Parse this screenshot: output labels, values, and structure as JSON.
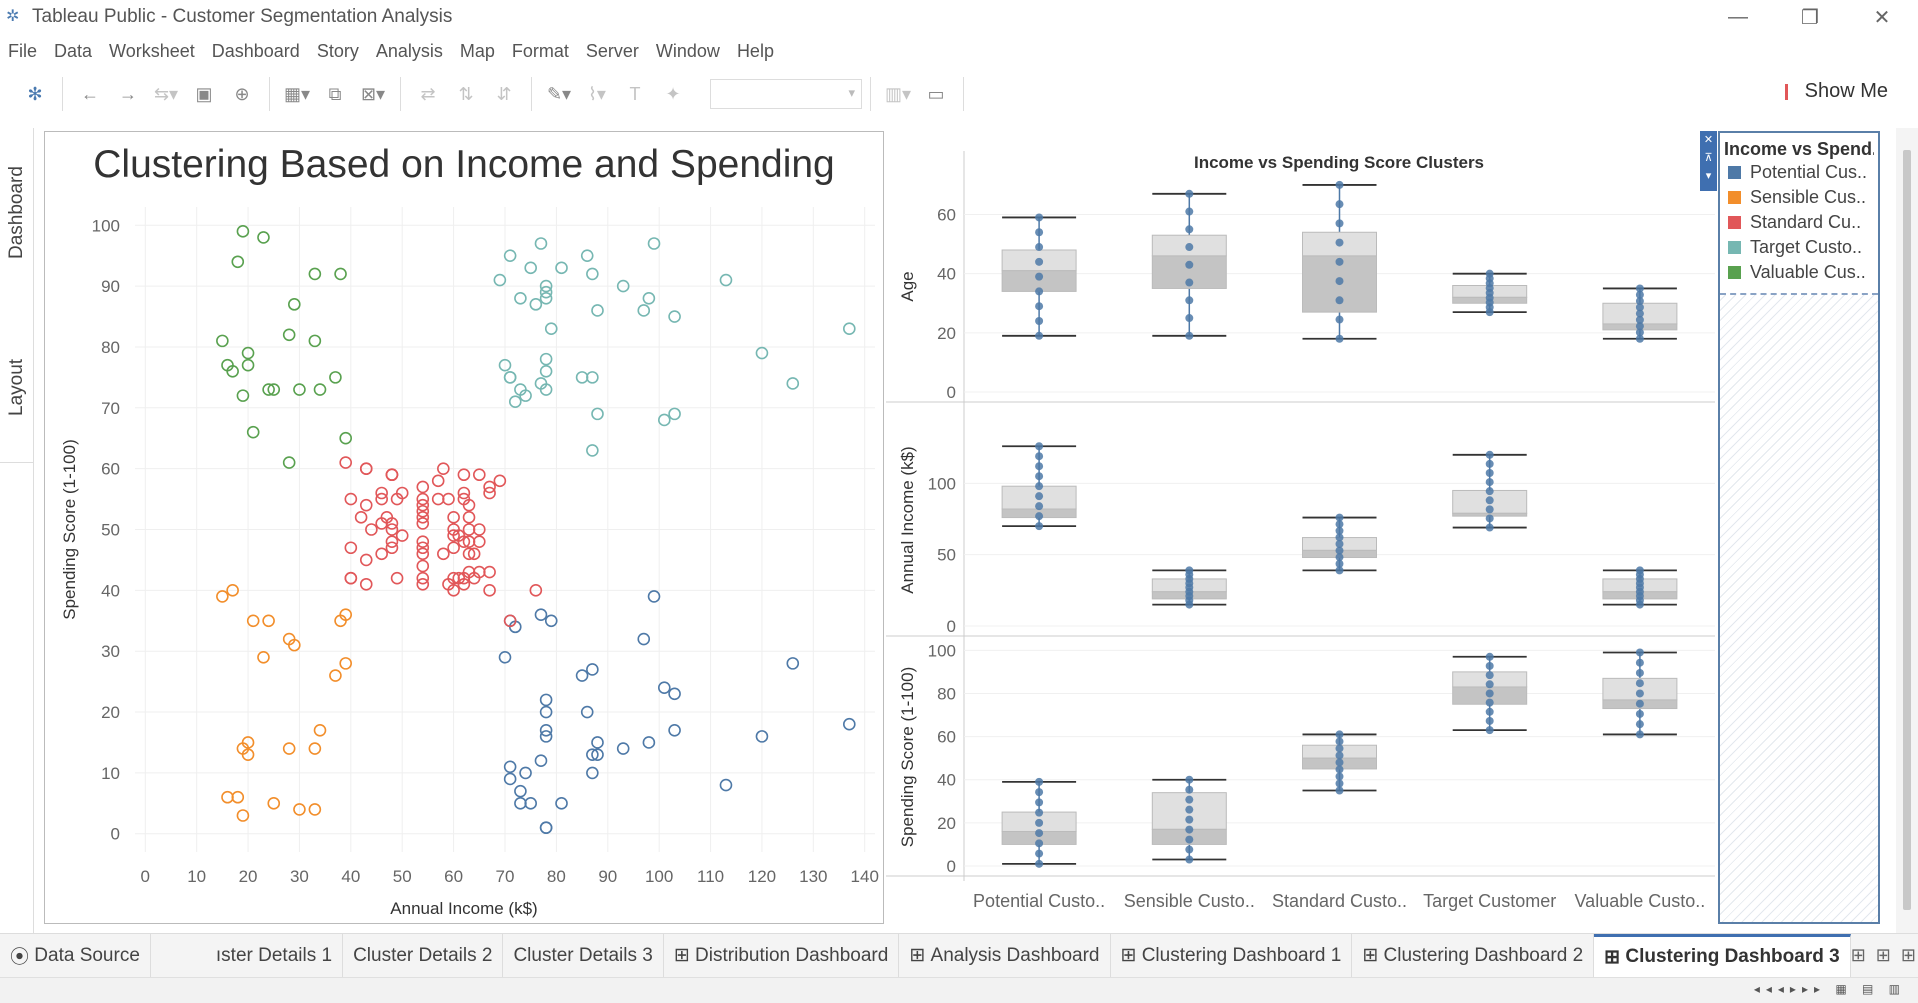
{
  "window": {
    "title": "Tableau Public - Customer Segmentation Analysis",
    "minimize": "—",
    "restore": "❐",
    "close": "✕"
  },
  "menu": [
    "File",
    "Data",
    "Worksheet",
    "Dashboard",
    "Story",
    "Analysis",
    "Map",
    "Format",
    "Server",
    "Window",
    "Help"
  ],
  "toolbar": {
    "show_me": "Show Me"
  },
  "side_tabs": {
    "dashboard": "Dashboard",
    "layout": "Layout",
    "collapse": "›"
  },
  "scatter": {
    "title": "Clustering Based on Income and Spending",
    "xlabel": "Annual Income (k$)",
    "ylabel": "Spending Score (1-100)",
    "xticks": [
      "0",
      "10",
      "20",
      "30",
      "40",
      "50",
      "60",
      "70",
      "80",
      "90",
      "100",
      "110",
      "120",
      "130",
      "140"
    ],
    "yticks": [
      "0",
      "10",
      "20",
      "30",
      "40",
      "50",
      "60",
      "70",
      "80",
      "90",
      "100"
    ]
  },
  "boxplots": {
    "title": "Income vs Spending Score Clusters",
    "rows": [
      {
        "label": "Age",
        "ticks": [
          "0",
          "20",
          "40",
          "60"
        ]
      },
      {
        "label": "Annual Income (k$)",
        "ticks": [
          "0",
          "50",
          "100"
        ]
      },
      {
        "label": "Spending Score (1-100)",
        "ticks": [
          "0",
          "20",
          "40",
          "60",
          "80",
          "100"
        ]
      }
    ],
    "categories": [
      "Potential Custo..",
      "Sensible Custo..",
      "Standard Custo..",
      "Target Customer",
      "Valuable Custo.."
    ]
  },
  "legend": {
    "title": "Income vs Spend..",
    "items": [
      {
        "label": "Potential Cus..",
        "color": "#4e79a7"
      },
      {
        "label": "Sensible Cus..",
        "color": "#f28e2b"
      },
      {
        "label": "Standard Cu..",
        "color": "#e15759"
      },
      {
        "label": "Target Custo..",
        "color": "#76b7b2"
      },
      {
        "label": "Valuable Cus..",
        "color": "#59a14f"
      }
    ]
  },
  "tabs": [
    "Data Source",
    "ıster Details 1",
    "Cluster Details 2",
    "Cluster Details 3",
    "Distribution Dashboard",
    "Analysis Dashboard",
    "Clustering Dashboard 1",
    "Clustering Dashboard 2",
    "Clustering Dashboard 3"
  ],
  "active_tab": "Clustering Dashboard 3",
  "chart_data": [
    {
      "type": "scatter",
      "title": "Clustering Based on Income and Spending",
      "xlabel": "Annual Income (k$)",
      "ylabel": "Spending Score (1-100)",
      "xlim": [
        -2,
        142
      ],
      "ylim": [
        -3,
        103
      ],
      "grid": true,
      "series": [
        {
          "name": "Potential Customer",
          "color": "#4e79a7",
          "points": [
            [
              70,
              29
            ],
            [
              71,
              35
            ],
            [
              71,
              11
            ],
            [
              71,
              9
            ],
            [
              72,
              34
            ],
            [
              73,
              5
            ],
            [
              73,
              7
            ],
            [
              74,
              10
            ],
            [
              75,
              5
            ],
            [
              77,
              12
            ],
            [
              77,
              36
            ],
            [
              78,
              22
            ],
            [
              78,
              17
            ],
            [
              78,
              20
            ],
            [
              78,
              16
            ],
            [
              78,
              1
            ],
            [
              78,
              1
            ],
            [
              79,
              35
            ],
            [
              81,
              5
            ],
            [
              85,
              26
            ],
            [
              86,
              20
            ],
            [
              87,
              27
            ],
            [
              87,
              13
            ],
            [
              87,
              10
            ],
            [
              88,
              13
            ],
            [
              88,
              15
            ],
            [
              93,
              14
            ],
            [
              97,
              32
            ],
            [
              98,
              15
            ],
            [
              99,
              39
            ],
            [
              101,
              24
            ],
            [
              103,
              17
            ],
            [
              103,
              23
            ],
            [
              113,
              8
            ],
            [
              120,
              16
            ],
            [
              126,
              28
            ],
            [
              137,
              18
            ]
          ]
        },
        {
          "name": "Sensible Customer",
          "color": "#f28e2b",
          "points": [
            [
              15,
              39
            ],
            [
              16,
              6
            ],
            [
              17,
              40
            ],
            [
              18,
              6
            ],
            [
              19,
              3
            ],
            [
              19,
              14
            ],
            [
              20,
              15
            ],
            [
              20,
              13
            ],
            [
              21,
              35
            ],
            [
              23,
              29
            ],
            [
              24,
              35
            ],
            [
              25,
              5
            ],
            [
              28,
              14
            ],
            [
              28,
              32
            ],
            [
              29,
              31
            ],
            [
              30,
              4
            ],
            [
              33,
              4
            ],
            [
              33,
              14
            ],
            [
              34,
              17
            ],
            [
              37,
              26
            ],
            [
              38,
              35
            ],
            [
              39,
              36
            ],
            [
              39,
              28
            ]
          ]
        },
        {
          "name": "Standard Customer",
          "color": "#e15759",
          "points": [
            [
              39,
              61
            ],
            [
              40,
              55
            ],
            [
              40,
              47
            ],
            [
              40,
              42
            ],
            [
              40,
              42
            ],
            [
              42,
              52
            ],
            [
              43,
              60
            ],
            [
              43,
              54
            ],
            [
              43,
              60
            ],
            [
              43,
              45
            ],
            [
              43,
              41
            ],
            [
              44,
              50
            ],
            [
              46,
              51
            ],
            [
              46,
              46
            ],
            [
              46,
              56
            ],
            [
              46,
              55
            ],
            [
              47,
              52
            ],
            [
              48,
              59
            ],
            [
              48,
              51
            ],
            [
              48,
              59
            ],
            [
              48,
              50
            ],
            [
              48,
              48
            ],
            [
              48,
              59
            ],
            [
              48,
              47
            ],
            [
              49,
              55
            ],
            [
              49,
              42
            ],
            [
              50,
              49
            ],
            [
              50,
              56
            ],
            [
              54,
              47
            ],
            [
              54,
              54
            ],
            [
              54,
              53
            ],
            [
              54,
              48
            ],
            [
              54,
              52
            ],
            [
              54,
              42
            ],
            [
              54,
              51
            ],
            [
              54,
              55
            ],
            [
              54,
              41
            ],
            [
              54,
              44
            ],
            [
              54,
              57
            ],
            [
              54,
              46
            ],
            [
              57,
              58
            ],
            [
              57,
              55
            ],
            [
              58,
              60
            ],
            [
              58,
              46
            ],
            [
              59,
              55
            ],
            [
              59,
              41
            ],
            [
              60,
              49
            ],
            [
              60,
              40
            ],
            [
              60,
              42
            ],
            [
              60,
              52
            ],
            [
              60,
              47
            ],
            [
              60,
              50
            ],
            [
              61,
              42
            ],
            [
              61,
              49
            ],
            [
              62,
              41
            ],
            [
              62,
              48
            ],
            [
              62,
              59
            ],
            [
              62,
              55
            ],
            [
              62,
              56
            ],
            [
              62,
              42
            ],
            [
              63,
              50
            ],
            [
              63,
              46
            ],
            [
              63,
              43
            ],
            [
              63,
              48
            ],
            [
              63,
              52
            ],
            [
              63,
              54
            ],
            [
              64,
              42
            ],
            [
              64,
              46
            ],
            [
              65,
              48
            ],
            [
              65,
              50
            ],
            [
              65,
              43
            ],
            [
              65,
              59
            ],
            [
              67,
              43
            ],
            [
              67,
              57
            ],
            [
              67,
              56
            ],
            [
              67,
              40
            ],
            [
              69,
              58
            ],
            [
              71,
              35
            ],
            [
              76,
              40
            ]
          ]
        },
        {
          "name": "Target Customer",
          "color": "#76b7b2",
          "points": [
            [
              69,
              91
            ],
            [
              70,
              77
            ],
            [
              71,
              95
            ],
            [
              71,
              75
            ],
            [
              71,
              75
            ],
            [
              72,
              71
            ],
            [
              73,
              88
            ],
            [
              73,
              73
            ],
            [
              74,
              72
            ],
            [
              75,
              93
            ],
            [
              76,
              87
            ],
            [
              77,
              97
            ],
            [
              77,
              74
            ],
            [
              78,
              90
            ],
            [
              78,
              88
            ],
            [
              78,
              76
            ],
            [
              78,
              89
            ],
            [
              78,
              78
            ],
            [
              78,
              73
            ],
            [
              79,
              83
            ],
            [
              81,
              93
            ],
            [
              85,
              75
            ],
            [
              86,
              95
            ],
            [
              87,
              63
            ],
            [
              87,
              75
            ],
            [
              87,
              92
            ],
            [
              88,
              86
            ],
            [
              88,
              69
            ],
            [
              93,
              90
            ],
            [
              97,
              86
            ],
            [
              98,
              88
            ],
            [
              99,
              97
            ],
            [
              101,
              68
            ],
            [
              103,
              85
            ],
            [
              103,
              69
            ],
            [
              113,
              91
            ],
            [
              120,
              79
            ],
            [
              126,
              74
            ],
            [
              137,
              83
            ]
          ]
        },
        {
          "name": "Valuable Customer",
          "color": "#59a14f",
          "points": [
            [
              15,
              81
            ],
            [
              16,
              77
            ],
            [
              17,
              76
            ],
            [
              18,
              94
            ],
            [
              19,
              72
            ],
            [
              19,
              99
            ],
            [
              20,
              77
            ],
            [
              20,
              79
            ],
            [
              21,
              66
            ],
            [
              23,
              98
            ],
            [
              24,
              73
            ],
            [
              25,
              73
            ],
            [
              28,
              82
            ],
            [
              28,
              61
            ],
            [
              29,
              87
            ],
            [
              30,
              73
            ],
            [
              33,
              92
            ],
            [
              33,
              81
            ],
            [
              34,
              73
            ],
            [
              37,
              75
            ],
            [
              38,
              92
            ],
            [
              39,
              65
            ]
          ]
        }
      ]
    },
    {
      "type": "box",
      "title": "Income vs Spending Score Clusters",
      "categories": [
        "Potential Customer",
        "Sensible Customer",
        "Standard Customer",
        "Target Customer",
        "Valuable Customer"
      ],
      "series": [
        {
          "name": "Age",
          "ylim": [
            0,
            72
          ],
          "boxes": [
            [
              19,
              34,
              41,
              48,
              59
            ],
            [
              19,
              35,
              46,
              53,
              67
            ],
            [
              18,
              27,
              46,
              54,
              70
            ],
            [
              27,
              30,
              32,
              36,
              40
            ],
            [
              18,
              21,
              23,
              30,
              35
            ]
          ]
        },
        {
          "name": "Annual Income (k$)",
          "ylim": [
            0,
            150
          ],
          "boxes": [
            [
              70,
              76,
              82,
              98,
              126
            ],
            [
              15,
              19,
              24,
              33,
              39
            ],
            [
              39,
              48,
              53,
              62,
              76
            ],
            [
              69,
              77,
              79,
              95,
              120
            ],
            [
              15,
              19,
              24,
              33,
              39
            ]
          ]
        },
        {
          "name": "Spending Score (1-100)",
          "ylim": [
            0,
            102
          ],
          "boxes": [
            [
              1,
              10,
              16,
              25,
              39
            ],
            [
              3,
              10,
              17,
              34,
              40
            ],
            [
              35,
              45,
              50,
              56,
              61
            ],
            [
              63,
              75,
              83,
              90,
              97
            ],
            [
              61,
              73,
              77,
              87,
              99
            ]
          ]
        }
      ]
    }
  ]
}
